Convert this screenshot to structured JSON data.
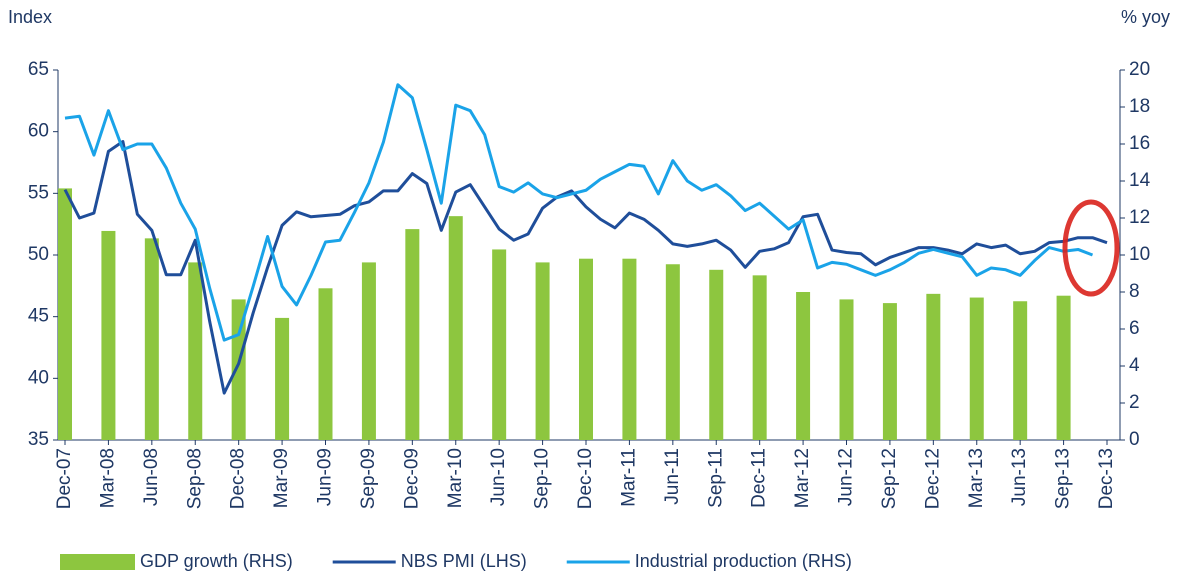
{
  "chart_data": {
    "type": "combo",
    "y_label": "Index",
    "y2_label": "% yoy",
    "categories": [
      "Dec-07",
      null,
      null,
      "Mar-08",
      null,
      null,
      "Jun-08",
      null,
      null,
      "Sep-08",
      null,
      null,
      "Dec-08",
      null,
      null,
      "Mar-09",
      null,
      null,
      "Jun-09",
      null,
      null,
      "Sep-09",
      null,
      null,
      "Dec-09",
      null,
      null,
      "Mar-10",
      null,
      null,
      "Jun-10",
      null,
      null,
      "Sep-10",
      null,
      null,
      "Dec-10",
      null,
      null,
      "Mar-11",
      null,
      null,
      "Jun-11",
      null,
      null,
      "Sep-11",
      null,
      null,
      "Dec-11",
      null,
      null,
      "Mar-12",
      null,
      null,
      "Jun-12",
      null,
      null,
      "Sep-12",
      null,
      null,
      "Dec-12",
      null,
      null,
      "Mar-13",
      null,
      null,
      "Jun-13",
      null,
      null,
      "Sep-13",
      null,
      null,
      "Dec-13"
    ],
    "series": [
      {
        "name": "GDP growth (RHS)",
        "type": "bar",
        "axis": "y2",
        "color": "#8dc63f",
        "values": [
          13.6,
          null,
          null,
          11.3,
          null,
          null,
          10.9,
          null,
          null,
          9.6,
          null,
          null,
          7.6,
          null,
          null,
          6.6,
          null,
          null,
          8.2,
          null,
          null,
          9.6,
          null,
          null,
          11.4,
          null,
          null,
          12.1,
          null,
          null,
          10.3,
          null,
          null,
          9.6,
          null,
          null,
          9.8,
          null,
          null,
          9.8,
          null,
          null,
          9.5,
          null,
          null,
          9.2,
          null,
          null,
          8.9,
          null,
          null,
          8.0,
          null,
          null,
          7.6,
          null,
          null,
          7.4,
          null,
          null,
          7.9,
          null,
          null,
          7.7,
          null,
          null,
          7.5,
          null,
          null,
          7.8,
          null,
          null,
          null
        ]
      },
      {
        "name": "NBS PMI (LHS)",
        "type": "line",
        "axis": "y",
        "color": "#1f4e9a",
        "values": [
          55.3,
          53.0,
          53.4,
          58.4,
          59.2,
          53.3,
          52.0,
          48.4,
          48.4,
          51.2,
          44.6,
          38.8,
          41.2,
          45.3,
          49.0,
          52.4,
          53.5,
          53.1,
          53.2,
          53.3,
          54.0,
          54.3,
          55.2,
          55.2,
          56.6,
          55.8,
          52.0,
          55.1,
          55.7,
          53.9,
          52.1,
          51.2,
          51.7,
          53.8,
          54.7,
          55.2,
          53.9,
          52.9,
          52.2,
          53.4,
          52.9,
          52.0,
          50.9,
          50.7,
          50.9,
          51.2,
          50.4,
          49.0,
          50.3,
          50.5,
          51.0,
          53.1,
          53.3,
          50.4,
          50.2,
          50.1,
          49.2,
          49.8,
          50.2,
          50.6,
          50.6,
          50.4,
          50.1,
          50.9,
          50.6,
          50.8,
          50.1,
          50.3,
          51.0,
          51.1,
          51.4,
          51.4,
          51.0
        ]
      },
      {
        "name": "Industrial production (RHS)",
        "type": "line",
        "axis": "y2",
        "color": "#1aa3e8",
        "values": [
          17.4,
          17.5,
          15.4,
          17.8,
          15.7,
          16.0,
          16.0,
          14.7,
          12.8,
          11.4,
          8.2,
          5.4,
          5.7,
          8.3,
          11.0,
          8.3,
          7.3,
          8.9,
          10.7,
          10.8,
          12.3,
          13.9,
          16.1,
          19.2,
          18.5,
          15.7,
          12.8,
          18.1,
          17.8,
          16.5,
          13.7,
          13.4,
          13.9,
          13.3,
          13.1,
          13.3,
          13.5,
          14.1,
          14.5,
          14.9,
          14.8,
          13.3,
          15.1,
          14.0,
          13.5,
          13.8,
          13.2,
          12.4,
          12.8,
          12.1,
          11.4,
          11.9,
          9.3,
          9.6,
          9.5,
          9.2,
          8.9,
          9.2,
          9.6,
          10.1,
          10.3,
          10.1,
          9.9,
          8.9,
          9.3,
          9.2,
          8.9,
          9.7,
          10.4,
          10.2,
          10.3,
          10.0,
          null
        ]
      }
    ],
    "ylim": [
      35,
      65
    ],
    "yticks": [
      35,
      40,
      45,
      50,
      55,
      60,
      65
    ],
    "y2lim": [
      0,
      20
    ],
    "y2ticks": [
      0,
      2,
      4,
      6,
      8,
      10,
      12,
      14,
      16,
      18,
      20
    ],
    "legend": "bottom"
  }
}
